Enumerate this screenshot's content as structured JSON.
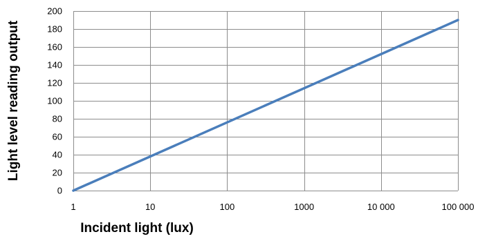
{
  "colors": {
    "series": "#4a7ebb",
    "grid": "#8c8c8c"
  },
  "chart_data": {
    "type": "line",
    "title": "",
    "xlabel": "Incident light (lux)",
    "ylabel": "Light level reading output",
    "x_scale": "log",
    "xlim": [
      1,
      100000
    ],
    "ylim": [
      0,
      200
    ],
    "grid": true,
    "legend": "none",
    "x_ticks": [
      1,
      10,
      100,
      1000,
      10000,
      100000
    ],
    "x_tick_labels": [
      "1",
      "10",
      "100",
      "1000",
      "10 000",
      "100 000"
    ],
    "y_ticks": [
      0,
      20,
      40,
      60,
      80,
      100,
      120,
      140,
      160,
      180,
      200
    ],
    "y_tick_labels": [
      "0",
      "20",
      "40",
      "60",
      "80",
      "100",
      "120",
      "140",
      "160",
      "180",
      "200"
    ],
    "series": [
      {
        "x": [
          1,
          100000
        ],
        "y": [
          0,
          190
        ]
      }
    ]
  }
}
